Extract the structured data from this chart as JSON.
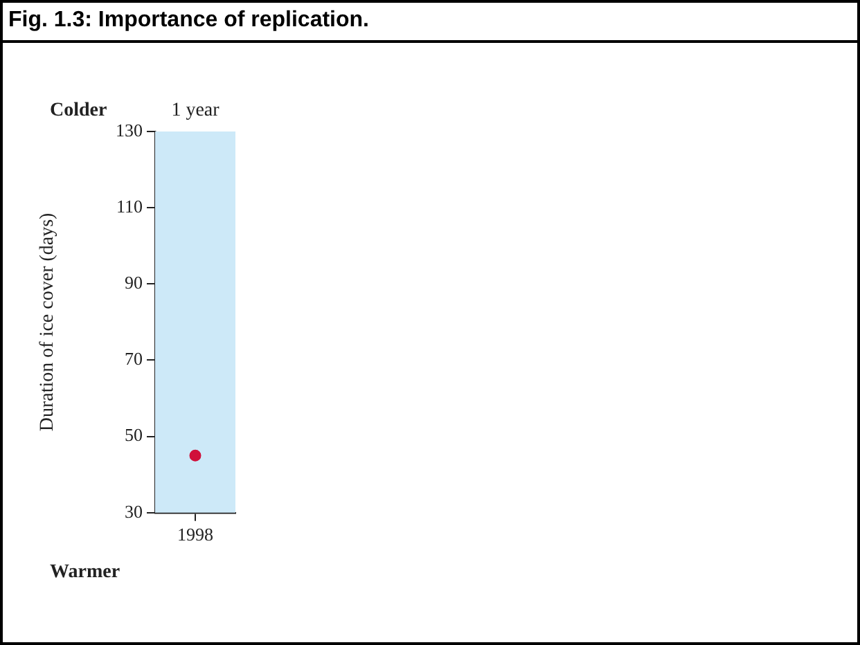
{
  "chart_data": {
    "type": "scatter",
    "title": "Fig. 1.3: Importance of replication.",
    "ylabel": "Duration of ice cover (days)",
    "categories": [
      "1998"
    ],
    "series": [
      {
        "color": "#d0103a",
        "values": [
          45
        ]
      }
    ],
    "ylim": [
      30,
      130
    ],
    "yticks": [
      30,
      50,
      70,
      90,
      110,
      130
    ],
    "bands": [
      {
        "axis": "y",
        "from": 30,
        "to": 130,
        "color": "#cde9f8",
        "label": "1 year"
      }
    ],
    "annotations": [
      "Colder",
      "Warmer"
    ],
    "marker": "circle",
    "grid": false,
    "legend": false
  }
}
